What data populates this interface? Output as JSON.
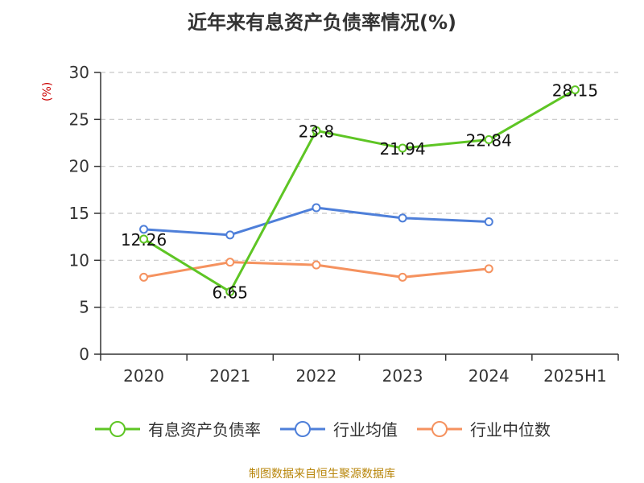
{
  "title": "近年来有息资产负债率情况(%)",
  "source": "制图数据来自恒生聚源数据库",
  "chart_data": {
    "type": "line",
    "title": "近年来有息资产负债率情况(%)",
    "ylabel": "(%)",
    "xlabel": "",
    "categories": [
      "2020",
      "2021",
      "2022",
      "2023",
      "2024",
      "2025H1"
    ],
    "ylim": [
      0,
      30
    ],
    "yticks": [
      0,
      5,
      10,
      15,
      20,
      25,
      30
    ],
    "grid": true,
    "legend_position": "bottom",
    "series": [
      {
        "name": "有息资产负债率",
        "color": "#5ec524",
        "values": [
          12.26,
          6.65,
          23.8,
          21.94,
          22.84,
          28.15
        ],
        "labels": [
          "12.26",
          "6.65",
          "23.8",
          "21.94",
          "22.84",
          "28.15"
        ]
      },
      {
        "name": "行业均值",
        "color": "#4e7fd9",
        "values": [
          13.3,
          12.7,
          15.6,
          14.5,
          14.1,
          null
        ]
      },
      {
        "name": "行业中位数",
        "color": "#f5925f",
        "values": [
          8.2,
          9.8,
          9.5,
          8.2,
          9.1,
          null
        ]
      }
    ]
  }
}
